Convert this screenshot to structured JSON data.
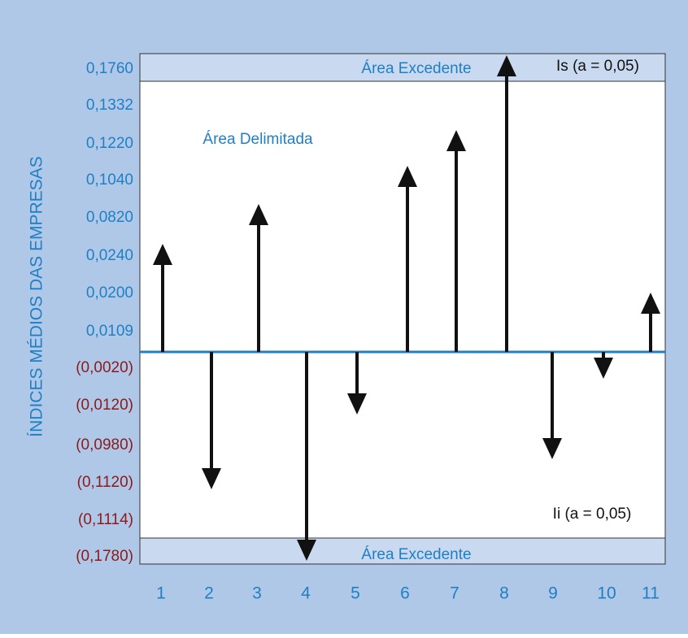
{
  "axis_title": "ÍNDICES MÉDIOS DAS EMPRESAS",
  "upper_band": {
    "label": "Área Excedente",
    "limit": "Is (a = 0,05)"
  },
  "lower_band": {
    "label": "Área Excedente",
    "limit": "Ii (a = 0,05)"
  },
  "region_label": "Área Delimitada",
  "y_labels_positive": [
    "0,1760",
    "0,1332",
    "0,1220",
    "0,1040",
    "0,0820",
    "0,0240",
    "0,0200",
    "0,0109"
  ],
  "y_labels_negative": [
    "(0,0020)",
    "(0,0120)",
    "(0,0980)",
    "(0,1120)",
    "(0,1114)",
    "(0,1780)"
  ],
  "x_labels": [
    "1",
    "2",
    "3",
    "4",
    "5",
    "6",
    "7",
    "8",
    "9",
    "10",
    "11"
  ]
}
